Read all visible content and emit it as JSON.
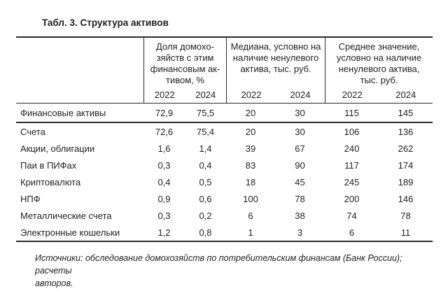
{
  "title": "Табл. 3. Структура активов",
  "table": {
    "column_groups": [
      {
        "title": "Доля домохо-\nзяйств с этим\nфинансовым ак-\nтивом, %",
        "years": [
          "2022",
          "2024"
        ]
      },
      {
        "title": "Медиана, условно на\nналичие ненулевого\nактива, тыс. руб.",
        "years": [
          "2022",
          "2024"
        ]
      },
      {
        "title": "Среднее значение,\nусловно на наличие\nненулевого актива,\nтыс. руб.",
        "years": [
          "2022",
          "2024"
        ]
      }
    ],
    "rows": [
      {
        "label": "Финансовые активы",
        "values": [
          "72,9",
          "75,5",
          "20",
          "30",
          "115",
          "145"
        ]
      },
      {
        "label": "Счета",
        "values": [
          "72,6",
          "75,4",
          "20",
          "30",
          "106",
          "136"
        ]
      },
      {
        "label": "Акции, облигации",
        "values": [
          "1,6",
          "1,4",
          "39",
          "67",
          "240",
          "262"
        ]
      },
      {
        "label": "Паи в ПИФах",
        "values": [
          "0,3",
          "0,4",
          "83",
          "90",
          "117",
          "174"
        ]
      },
      {
        "label": "Криптовалюта",
        "values": [
          "0,4",
          "0,5",
          "18",
          "45",
          "245",
          "189"
        ]
      },
      {
        "label": "НПФ",
        "values": [
          "0,9",
          "0,6",
          "100",
          "78",
          "200",
          "146"
        ]
      },
      {
        "label": "Металлические счета",
        "values": [
          "0,3",
          "0,2",
          "6",
          "38",
          "74",
          "78"
        ]
      },
      {
        "label": "Электронные кошельки",
        "values": [
          "1,2",
          "0,8",
          "1",
          "3",
          "6",
          "11"
        ]
      }
    ]
  },
  "footer": "Источники: обследование домохозяйств по потребительским финансам (Банк России); расчеты\nавторов."
}
